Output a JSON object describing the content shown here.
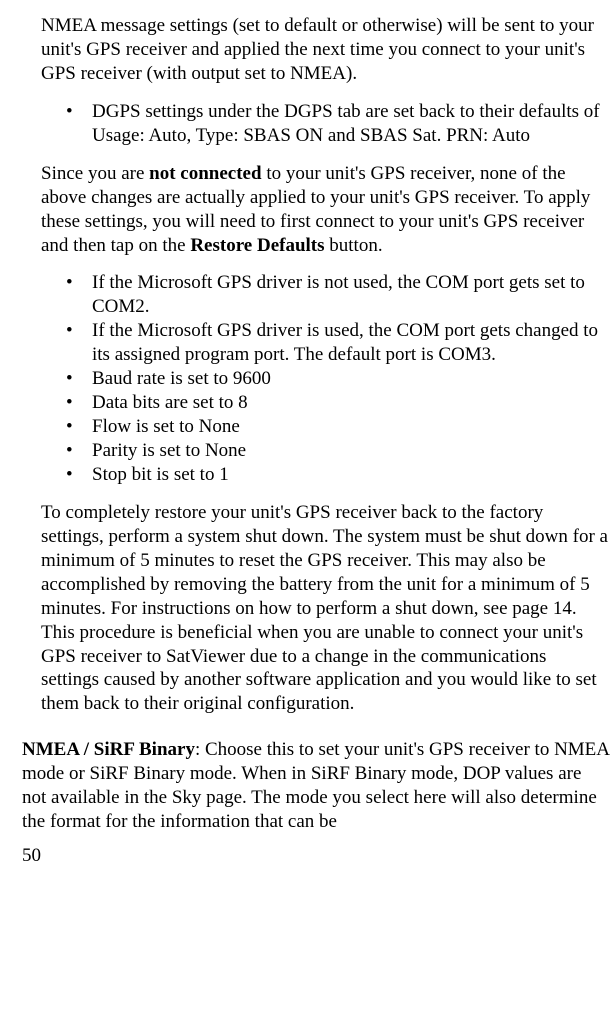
{
  "top_para": "NMEA message settings (set to default or otherwise) will be sent to your unit's GPS receiver and applied the next time you connect to your unit's GPS receiver (with output set to NMEA).",
  "bullets1": [
    "DGPS settings under the DGPS tab are set back to their defaults of Usage: Auto, Type: SBAS ON and SBAS Sat. PRN: Auto"
  ],
  "since_para_1": "Since you are ",
  "since_bold": "not connected",
  "since_para_2": " to your unit's GPS receiver, none of the above changes are actually applied to your unit's GPS receiver. To apply these settings, you will need to first connect to your unit's GPS receiver and then tap on the ",
  "since_bold2": "Restore Defaults",
  "since_para_3": " button.",
  "bullets2": [
    "If the Microsoft GPS driver is not used, the COM port gets set to COM2.",
    "If the Microsoft GPS driver is used, the COM port gets changed to its assigned program port. The default port is COM3.",
    "Baud rate is set to 9600",
    "Data bits are set to 8",
    "Flow is set to None",
    "Parity is set to None",
    "Stop bit is set to 1"
  ],
  "restore_para": "To completely restore your unit's GPS receiver back to the factory settings, perform a system shut down. The system must be shut down for a minimum of 5 minutes to reset the GPS receiver. This may also be accomplished by removing the battery from the unit for a minimum of 5 minutes. For instructions on how to perform a shut down, see page 14. This procedure is beneficial when you are unable to connect your unit's GPS receiver to SatViewer due to a change in the communications settings caused by another software application and you would like to set them back to their original configuration.",
  "nmea_bold": "NMEA / SiRF Binary",
  "nmea_rest": ": Choose this to set your unit's GPS receiver to NMEA mode or SiRF Binary mode. When in SiRF Binary mode, DOP values are not available in the Sky page. The mode you select here will also determine the format for the information that can be",
  "page_number": "50"
}
